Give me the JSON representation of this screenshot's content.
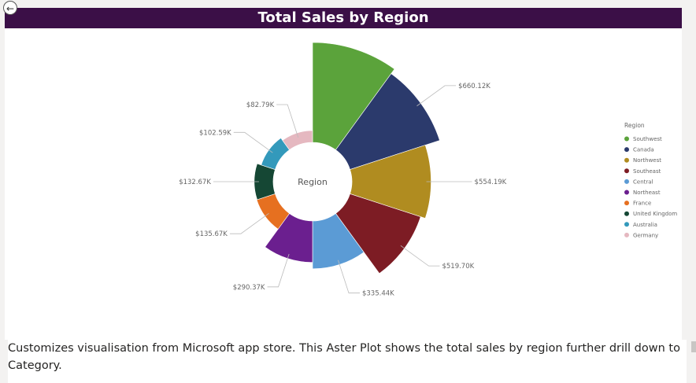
{
  "visual": {
    "title": "Total Sales by Region",
    "back_icon": "back-arrow-icon",
    "header_color": "#3b0f47"
  },
  "chart_data": {
    "type": "aster",
    "center_label": "Region",
    "legend_title": "Region",
    "legend_position": "right",
    "max_value_k": 700,
    "categories": [
      "Southwest",
      "Canada",
      "Northwest",
      "Southeast",
      "Central",
      "Northeast",
      "France",
      "United Kingdom",
      "Australia",
      "Germany"
    ],
    "values_k": [
      700,
      660.12,
      554.19,
      519.7,
      335.44,
      290.37,
      135.67,
      132.67,
      102.59,
      82.79
    ],
    "data_labels": [
      "",
      "$660.12K",
      "$554.19K",
      "$519.70K",
      "$335.44K",
      "$290.37K",
      "$135.67K",
      "$132.67K",
      "$102.59K",
      "$82.79K"
    ],
    "colors": [
      "#5ba33b",
      "#2b3a6c",
      "#b08c20",
      "#7d1c24",
      "#5b9bd5",
      "#6b1f8f",
      "#e67020",
      "#154734",
      "#3399bb",
      "#e5b8c0"
    ]
  },
  "description": "Customizes visualisation from Microsoft app store. This Aster Plot shows the total sales by region further drill down to Category."
}
